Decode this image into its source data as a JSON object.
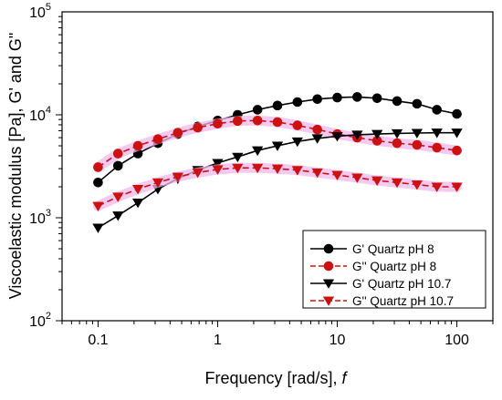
{
  "chart_data": {
    "type": "line",
    "xlabel": "Frequency [rad/s], f",
    "xlabel_main": "Frequency [rad/s], ",
    "xlabel_var": "f",
    "ylabel": "Viscoelastic modulus [Pa], G' and G\"",
    "xscale": "log",
    "yscale": "log",
    "xlim": [
      0.05,
      200
    ],
    "ylim": [
      100,
      100000
    ],
    "x_ticks": [
      {
        "value": 0.1,
        "label": "0.1"
      },
      {
        "value": 1,
        "label": "1"
      },
      {
        "value": 10,
        "label": "10"
      },
      {
        "value": 100,
        "label": "100"
      }
    ],
    "y_ticks": [
      {
        "value": 100,
        "base": "10",
        "exp": "2"
      },
      {
        "value": 1000,
        "base": "10",
        "exp": "3"
      },
      {
        "value": 10000,
        "base": "10",
        "exp": "4"
      },
      {
        "value": 100000,
        "base": "10",
        "exp": "5"
      }
    ],
    "legend_position": "bottom-right",
    "x": [
      0.1,
      0.1468,
      0.2154,
      0.3162,
      0.4642,
      0.6813,
      1.0,
      1.468,
      2.154,
      3.162,
      4.642,
      6.813,
      10.0,
      14.68,
      21.54,
      31.62,
      46.42,
      68.13,
      100.0
    ],
    "series": [
      {
        "name": "G'  Quartz pH 8",
        "color": "#000000",
        "marker": "circle",
        "dashed": false,
        "values": [
          2200,
          3200,
          4200,
          5300,
          6500,
          7700,
          8800,
          10000,
          11200,
          12300,
          13300,
          14200,
          14700,
          14900,
          14500,
          13600,
          12800,
          11200,
          10200
        ]
      },
      {
        "name": "G''  Quartz pH  8",
        "color": "#cc1111",
        "marker": "circle",
        "dashed": true,
        "values": [
          3100,
          4200,
          5000,
          5800,
          6700,
          7500,
          8200,
          8700,
          8800,
          8500,
          7900,
          7200,
          6500,
          6000,
          5600,
          5300,
          5100,
          4800,
          4500
        ]
      },
      {
        "name": "G'  Quartz  pH 10.7",
        "color": "#000000",
        "marker": "triangle-down",
        "dashed": false,
        "values": [
          800,
          1050,
          1400,
          1900,
          2400,
          2900,
          3400,
          3900,
          4500,
          5000,
          5500,
          5900,
          6200,
          6400,
          6500,
          6600,
          6650,
          6700,
          6700
        ]
      },
      {
        "name": "G''  Quartz  pH 10.7",
        "color": "#cc1111",
        "marker": "triangle-down",
        "dashed": true,
        "values": [
          1300,
          1600,
          1900,
          2200,
          2500,
          2750,
          2950,
          3050,
          3050,
          3000,
          2900,
          2750,
          2600,
          2450,
          2300,
          2200,
          2100,
          2000,
          2000
        ]
      }
    ]
  }
}
